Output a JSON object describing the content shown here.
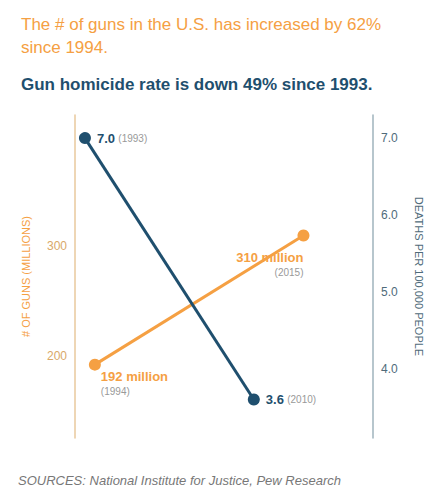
{
  "chart_data": {
    "type": "line",
    "title": "The # of guns in the U.S. has increased by 62% since 1994.",
    "subtitle": "Gun homicide rate is down 49% since 1993.",
    "source": "SOURCES: National Institute for Justice, Pew Research",
    "y_label": "# OF GUNS (MILLIONS)",
    "y2_label": "DEATHS PER 100,000 PEOPLE",
    "xlim": [
      1992,
      2022
    ],
    "ylim": [
      125,
      420
    ],
    "yticks": [
      200,
      300
    ],
    "y2lim": [
      3.1,
      7.3
    ],
    "y2ticks": [
      {
        "value": 4,
        "label": "4.0"
      },
      {
        "value": 5,
        "label": "5.0"
      },
      {
        "value": 6,
        "label": "6.0"
      },
      {
        "value": 7,
        "label": "7.0"
      }
    ],
    "grid": false,
    "tick_labels": "y",
    "series": [
      {
        "name": "# of guns",
        "color": "#f5a043",
        "marker": "circle",
        "x": [
          1994,
          2015
        ],
        "values": [
          192,
          310
        ],
        "value_labels": [
          "192 million",
          "310 million"
        ],
        "x_labels": [
          "(1994)",
          "(2015)"
        ]
      },
      {
        "name": "Gun homicide",
        "color": "#1f4f6e",
        "marker": "circle",
        "axis": "y2",
        "x": [
          1993,
          2010
        ],
        "values": [
          7.0,
          3.6
        ],
        "value_labels": [
          "7.0",
          "3.6"
        ],
        "x_labels": [
          "(1993)",
          "(2010)"
        ]
      }
    ]
  }
}
